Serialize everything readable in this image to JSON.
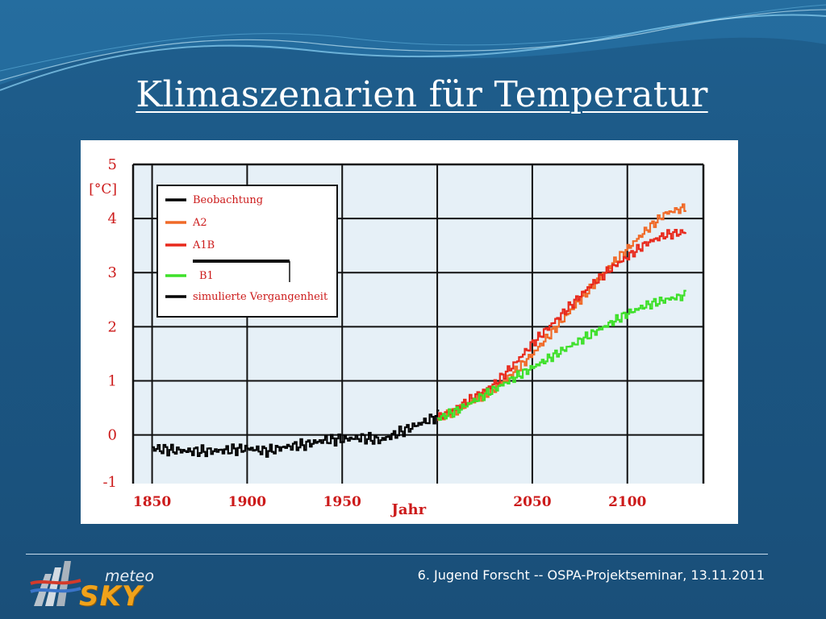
{
  "slide": {
    "title": "Klimaszenarien für Temperatur",
    "footer": "6. Jugend Forscht -- OSPA-Projektseminar, 13.11.2011",
    "logo": {
      "line1": "meteo",
      "line2": "SKY"
    }
  },
  "colors": {
    "background": "#1b5683",
    "plot_bg": "#e6f0f7",
    "observation": "#000000",
    "A2": "#f06a28",
    "A1B": "#e8291c",
    "B1": "#3ee02a",
    "tick_label": "#cc1a1a"
  },
  "chart_data": {
    "type": "line",
    "title": "",
    "xlabel": "Jahr",
    "ylabel": "[°C]",
    "xlim": [
      1840,
      2140
    ],
    "ylim": [
      -0.9,
      5
    ],
    "grid": true,
    "x_ticks": [
      1850,
      1900,
      1950,
      2000,
      2050,
      2100
    ],
    "x_tick_labels": [
      "1850",
      "1900",
      "1950",
      "",
      "2050",
      "2100"
    ],
    "y_ticks": [
      -1,
      0,
      1,
      2,
      3,
      4,
      5
    ],
    "y_tick_labels": [
      "-1",
      "0",
      "1",
      "2",
      "3",
      "4",
      "5"
    ],
    "legend": {
      "placement": "top-left",
      "entries": [
        {
          "label": "Beobachtung",
          "color": "#000000"
        },
        {
          "label": "A2",
          "color": "#f06a28"
        },
        {
          "label": "A1B",
          "color": "#e8291c"
        },
        {
          "label": "B1",
          "color": "#3ee02a"
        },
        {
          "label": "simulierte Vergangenheit",
          "color": "#000000"
        }
      ]
    },
    "series": [
      {
        "name": "Beobachtung",
        "x": [
          1850,
          1860,
          1870,
          1880,
          1890,
          1900,
          1910,
          1920,
          1930,
          1940,
          1950,
          1960,
          1970,
          1980,
          1990,
          2000
        ],
        "values": [
          -0.25,
          -0.28,
          -0.3,
          -0.3,
          -0.28,
          -0.25,
          -0.3,
          -0.22,
          -0.18,
          -0.1,
          -0.08,
          -0.05,
          -0.1,
          0.05,
          0.2,
          0.35
        ]
      },
      {
        "name": "A2",
        "x": [
          2000,
          2010,
          2020,
          2030,
          2040,
          2050,
          2060,
          2070,
          2080,
          2090,
          2100,
          2110,
          2120,
          2130
        ],
        "values": [
          0.3,
          0.45,
          0.65,
          0.85,
          1.15,
          1.5,
          1.9,
          2.3,
          2.7,
          3.1,
          3.45,
          3.8,
          4.1,
          4.2
        ]
      },
      {
        "name": "A1B",
        "x": [
          2000,
          2010,
          2020,
          2030,
          2040,
          2050,
          2060,
          2070,
          2080,
          2090,
          2100,
          2110,
          2120,
          2130
        ],
        "values": [
          0.3,
          0.5,
          0.72,
          0.95,
          1.3,
          1.7,
          2.05,
          2.4,
          2.75,
          3.05,
          3.3,
          3.55,
          3.7,
          3.75
        ]
      },
      {
        "name": "B1",
        "x": [
          2000,
          2010,
          2020,
          2030,
          2040,
          2050,
          2060,
          2070,
          2080,
          2090,
          2100,
          2110,
          2120,
          2130
        ],
        "values": [
          0.3,
          0.45,
          0.65,
          0.85,
          1.05,
          1.25,
          1.45,
          1.65,
          1.85,
          2.05,
          2.25,
          2.4,
          2.5,
          2.58
        ]
      }
    ]
  }
}
